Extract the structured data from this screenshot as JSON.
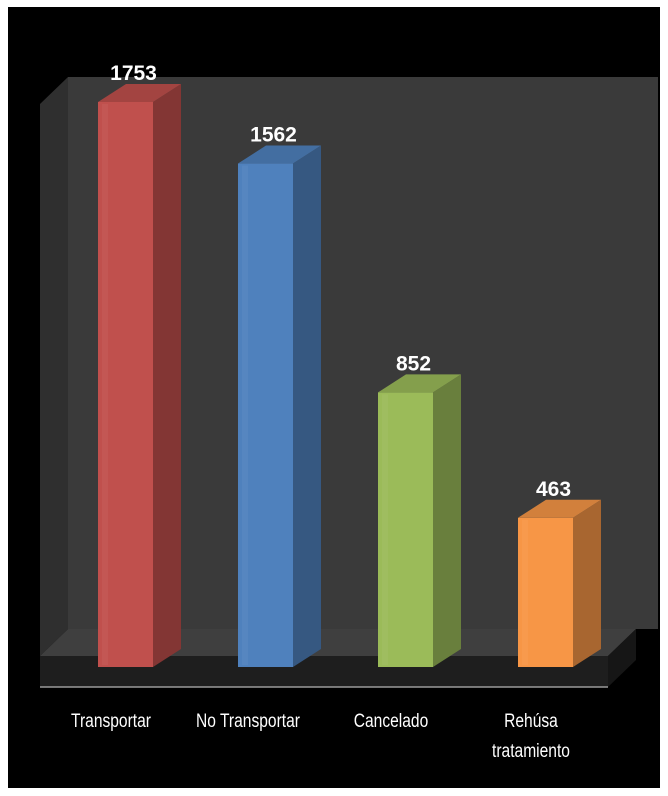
{
  "chart_data": {
    "type": "bar",
    "style": "3d-column",
    "title": "",
    "xlabel": "",
    "ylabel": "",
    "categories": [
      "Transportar",
      "No Transportar",
      "Cancelado",
      "Rehúsa tratamiento"
    ],
    "category_lines": [
      [
        "Transportar"
      ],
      [
        "No Transportar"
      ],
      [
        "Cancelado"
      ],
      [
        "Rehúsa",
        "tratamiento"
      ]
    ],
    "values": [
      1753,
      1562,
      852,
      463
    ],
    "data_labels": [
      "1753",
      "1562",
      "852",
      "463"
    ],
    "colors": [
      "#c0504d",
      "#4f81bd",
      "#9bbb59",
      "#f79646"
    ],
    "ylim": [
      0,
      1753
    ],
    "grid": false,
    "legend": "none",
    "background": "#000000",
    "wall_color": "#3a3a3a",
    "floor_color": "#3f3f3f"
  }
}
